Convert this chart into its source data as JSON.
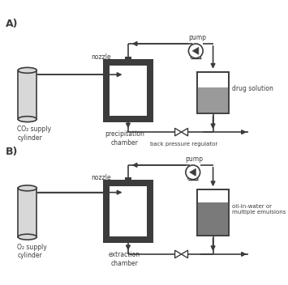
{
  "bg_color": "#ffffff",
  "line_color": "#3c3c3c",
  "cylinder_fill": "#d8d8d8",
  "chamber_border_color": "#3c3c3c",
  "chamber_inner": "#ffffff",
  "tank_border": "#3c3c3c",
  "tank_liquid_A": "#9a9a9a",
  "tank_liquid_B": "#7a7a7a",
  "nozzle_fill": "#3c3c3c",
  "valve_fill": "#e0e0e0",
  "pump_fill": "#ffffff",
  "label_A_title": "A)",
  "label_B_title": "B)",
  "label_co2": "CO₂ supply\ncylinder",
  "label_o2": "O₂ supply\ncylinder",
  "label_precip": "precipitation\nchamber",
  "label_extract": "extraction\nchamber",
  "label_drug": "drug solution",
  "label_emulsion": "oil-in-water or\nmultiple emulsions",
  "label_pump_A": "pump",
  "label_pump_B": "pump",
  "label_nozzle_A": "nozzle",
  "label_nozzle_B": "nozzle",
  "label_bpr": "back pressure regulator"
}
